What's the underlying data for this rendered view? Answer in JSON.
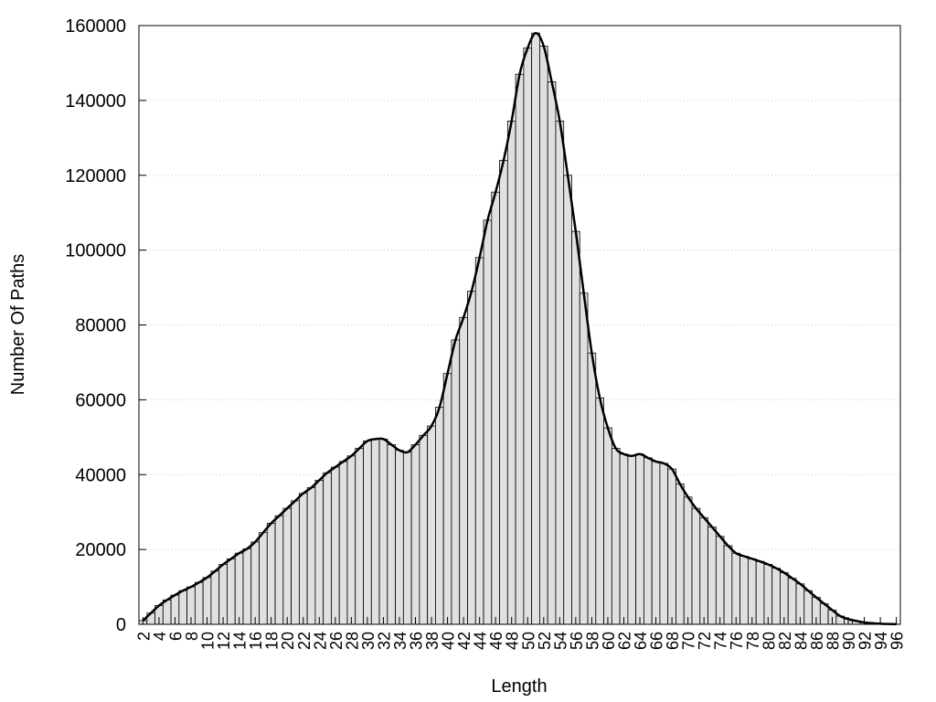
{
  "chart_data": {
    "type": "bar",
    "smooth_line": true,
    "x_label": "Length",
    "y_label": "Number Of Paths",
    "x": [
      2,
      3,
      4,
      5,
      6,
      7,
      8,
      9,
      10,
      11,
      12,
      13,
      14,
      15,
      16,
      17,
      18,
      19,
      20,
      21,
      22,
      23,
      24,
      25,
      26,
      27,
      28,
      29,
      30,
      31,
      32,
      33,
      34,
      35,
      36,
      37,
      38,
      39,
      40,
      41,
      42,
      43,
      44,
      45,
      46,
      47,
      48,
      49,
      50,
      51,
      52,
      53,
      54,
      55,
      56,
      57,
      58,
      59,
      60,
      61,
      62,
      63,
      64,
      65,
      66,
      67,
      68,
      69,
      70,
      71,
      72,
      73,
      74,
      75,
      76,
      77,
      78,
      79,
      80,
      81,
      82,
      83,
      84,
      85,
      86,
      87,
      88,
      89,
      90,
      91,
      92,
      93,
      94,
      95,
      96
    ],
    "values": [
      1000,
      3000,
      5000,
      6500,
      7800,
      9000,
      10000,
      11200,
      12500,
      14200,
      16000,
      17500,
      19000,
      20200,
      22000,
      24500,
      27000,
      29000,
      31000,
      33000,
      35000,
      36500,
      38500,
      40500,
      42000,
      43500,
      45000,
      47000,
      49000,
      49500,
      49500,
      48000,
      46500,
      46000,
      48000,
      50500,
      53000,
      58000,
      67000,
      76000,
      82000,
      89000,
      98000,
      108000,
      115500,
      124000,
      134500,
      147000,
      154000,
      158000,
      154500,
      145000,
      134500,
      120000,
      105000,
      88500,
      72500,
      60500,
      52500,
      47000,
      45500,
      45000,
      45500,
      44500,
      43500,
      43000,
      41500,
      37500,
      34000,
      31000,
      28500,
      26000,
      23500,
      21000,
      19000,
      18200,
      17500,
      16800,
      16000,
      15000,
      13800,
      12300,
      10800,
      9000,
      7200,
      5500,
      3800,
      2200,
      1400,
      900,
      500,
      300,
      150,
      80,
      30
    ],
    "color": "#e0e0e0",
    "line_color": "#000000",
    "xlim": [
      1.5,
      96.5
    ],
    "xticks": [
      2,
      4,
      6,
      8,
      10,
      12,
      14,
      16,
      18,
      20,
      22,
      24,
      26,
      28,
      30,
      32,
      34,
      36,
      38,
      40,
      42,
      44,
      46,
      48,
      50,
      52,
      54,
      56,
      58,
      60,
      62,
      64,
      66,
      68,
      70,
      72,
      74,
      76,
      78,
      80,
      82,
      84,
      86,
      88,
      90,
      92,
      94,
      96
    ],
    "ylim": [
      0,
      160000
    ],
    "yticks": [
      0,
      20000,
      40000,
      60000,
      80000,
      100000,
      120000,
      140000,
      160000
    ],
    "grid": true
  }
}
